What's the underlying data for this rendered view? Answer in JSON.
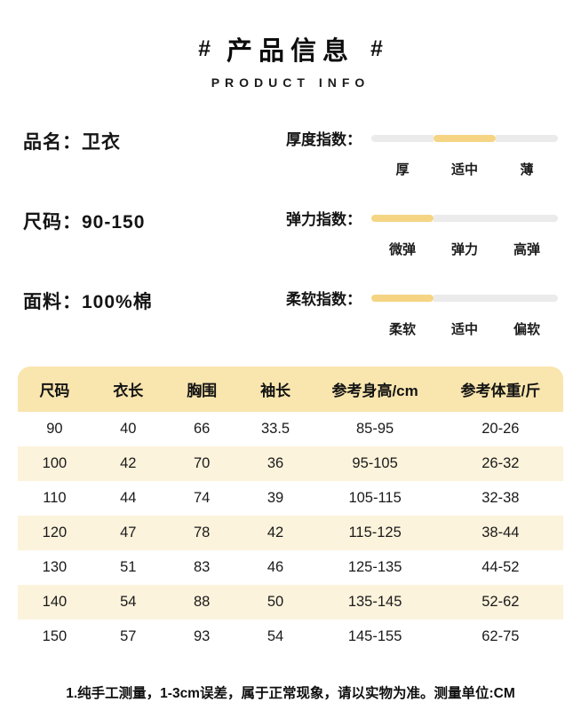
{
  "colors": {
    "accent": "#F5D584",
    "bar_track": "#EBEBEB",
    "header_bg": "#F9E5AE",
    "row_alt_bg": "#FCF3DC"
  },
  "header": {
    "hash_left": "#",
    "title": "产品信息",
    "hash_right": "#",
    "subtitle": "PRODUCT INFO"
  },
  "attributes": [
    {
      "label": "品名：",
      "value": "卫衣"
    },
    {
      "label": "尺码：",
      "value": "90-150"
    },
    {
      "label": "面料：",
      "value": "100%棉"
    }
  ],
  "indices": [
    {
      "label": "厚度指数：",
      "options": [
        "厚",
        "适中",
        "薄"
      ],
      "active": 1
    },
    {
      "label": "弹力指数：",
      "options": [
        "微弹",
        "弹力",
        "高弹"
      ],
      "active": 0
    },
    {
      "label": "柔软指数：",
      "options": [
        "柔软",
        "适中",
        "偏软"
      ],
      "active": 0
    }
  ],
  "table": {
    "headers": [
      "尺码",
      "衣长",
      "胸围",
      "袖长",
      "参考身高/cm",
      "参考体重/斤"
    ],
    "rows": [
      [
        "90",
        "40",
        "66",
        "33.5",
        "85-95",
        "20-26"
      ],
      [
        "100",
        "42",
        "70",
        "36",
        "95-105",
        "26-32"
      ],
      [
        "110",
        "44",
        "74",
        "39",
        "105-115",
        "32-38"
      ],
      [
        "120",
        "47",
        "78",
        "42",
        "115-125",
        "38-44"
      ],
      [
        "130",
        "51",
        "83",
        "46",
        "125-135",
        "44-52"
      ],
      [
        "140",
        "54",
        "88",
        "50",
        "135-145",
        "52-62"
      ],
      [
        "150",
        "57",
        "93",
        "54",
        "145-155",
        "62-75"
      ]
    ]
  },
  "footer": {
    "note": "1.纯手工测量，1-3cm误差，属于正常现象，请以实物为准。测量单位:CM"
  }
}
